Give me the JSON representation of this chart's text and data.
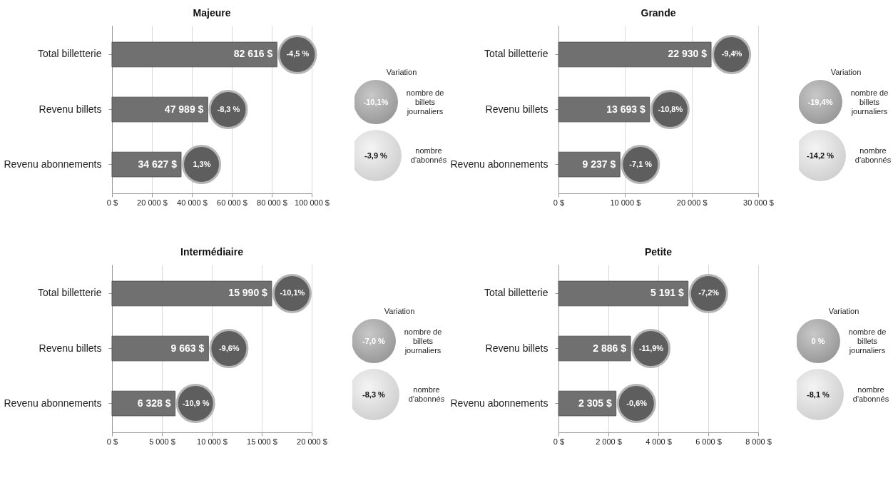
{
  "chart_data": [
    {
      "type": "bar",
      "orientation": "horizontal",
      "title": "Majeure",
      "categories": [
        "Total billetterie",
        "Revenu billets",
        "Revenu abonnements"
      ],
      "values": [
        82616,
        47989,
        34627
      ],
      "value_labels": [
        "82 616 $",
        "47 989 $",
        "34 627 $"
      ],
      "color": "#707070",
      "xlim": [
        0,
        100000
      ],
      "xticks": [
        {
          "value": 0,
          "label": "0 $"
        },
        {
          "value": 20000,
          "label": "20 000 $"
        },
        {
          "value": 40000,
          "label": "40 000 $"
        },
        {
          "value": 60000,
          "label": "60 000 $"
        },
        {
          "value": 80000,
          "label": "80 000 $"
        },
        {
          "value": 100000,
          "label": "100 000 $"
        }
      ],
      "grid": "x",
      "annotations": [
        {
          "text": "-4,5 %",
          "x": 82616,
          "y": "Total billetterie"
        },
        {
          "text": "-8,3 %",
          "x": 47989,
          "y": "Revenu billets"
        },
        {
          "text": "1,3%",
          "x": 34627,
          "y": "Revenu abonnements"
        },
        "Variation",
        "-10,1%",
        "nombre de billets journaliers",
        "-3,9 %",
        "nombre d'abonnés"
      ]
    },
    {
      "type": "bar",
      "orientation": "horizontal",
      "title": "Grande",
      "categories": [
        "Total billetterie",
        "Revenu billets",
        "Revenu abonnements"
      ],
      "values": [
        22930,
        13693,
        9237
      ],
      "value_labels": [
        "22 930 $",
        "13 693 $",
        "9 237 $"
      ],
      "color": "#707070",
      "xlim": [
        0,
        30000
      ],
      "xticks": [
        {
          "value": 0,
          "label": "0 $"
        },
        {
          "value": 10000,
          "label": "10 000 $"
        },
        {
          "value": 20000,
          "label": "20 000 $"
        },
        {
          "value": 30000,
          "label": "30 000 $"
        }
      ],
      "grid": "x",
      "annotations": [
        {
          "text": "-9,4%",
          "x": 22930,
          "y": "Total billetterie"
        },
        {
          "text": "-10,8%",
          "x": 13693,
          "y": "Revenu billets"
        },
        {
          "text": "-7,1 %",
          "x": 9237,
          "y": "Revenu abonnements"
        },
        "Variation",
        "-19,4%",
        "nombre de billets journaliers",
        "-14,2 %",
        "nombre d'abonnés"
      ]
    },
    {
      "type": "bar",
      "orientation": "horizontal",
      "title": "Intermédiaire",
      "categories": [
        "Total billetterie",
        "Revenu billets",
        "Revenu abonnements"
      ],
      "values": [
        15990,
        9663,
        6328
      ],
      "value_labels": [
        "15 990 $",
        "9 663 $",
        "6 328 $"
      ],
      "color": "#707070",
      "xlim": [
        0,
        20000
      ],
      "xticks": [
        {
          "value": 0,
          "label": "0 $"
        },
        {
          "value": 5000,
          "label": "5 000 $"
        },
        {
          "value": 10000,
          "label": "10 000 $"
        },
        {
          "value": 15000,
          "label": "15 000 $"
        },
        {
          "value": 20000,
          "label": "20 000 $"
        }
      ],
      "grid": "x",
      "annotations": [
        {
          "text": "-10,1%",
          "x": 15990,
          "y": "Total billetterie"
        },
        {
          "text": "-9,6%",
          "x": 9663,
          "y": "Revenu billets"
        },
        {
          "text": "-10,9 %",
          "x": 6328,
          "y": "Revenu abonnements"
        },
        "Variation",
        "-7,0 %",
        "nombre de billets journaliers",
        "-8,3 %",
        "nombre d'abonnés"
      ]
    },
    {
      "type": "bar",
      "orientation": "horizontal",
      "title": "Petite",
      "categories": [
        "Total billetterie",
        "Revenu billets",
        "Revenu abonnements"
      ],
      "values": [
        5191,
        2886,
        2305
      ],
      "value_labels": [
        "5 191 $",
        "2 886 $",
        "2 305 $"
      ],
      "color": "#707070",
      "xlim": [
        0,
        8000
      ],
      "xticks": [
        {
          "value": 0,
          "label": "0 $"
        },
        {
          "value": 2000,
          "label": "2 000 $"
        },
        {
          "value": 4000,
          "label": "4 000 $"
        },
        {
          "value": 6000,
          "label": "6 000 $"
        },
        {
          "value": 8000,
          "label": "8 000 $"
        }
      ],
      "grid": "x",
      "annotations": [
        {
          "text": "-7,2%",
          "x": 5191,
          "y": "Total billetterie"
        },
        {
          "text": "-11,9%",
          "x": 2886,
          "y": "Revenu billets"
        },
        {
          "text": "-0,6%",
          "x": 2305,
          "y": "Revenu abonnements"
        },
        "Variation",
        "0 %",
        "nombre de billets journaliers",
        "-8,1 %",
        "nombre d'abonnés"
      ]
    }
  ]
}
